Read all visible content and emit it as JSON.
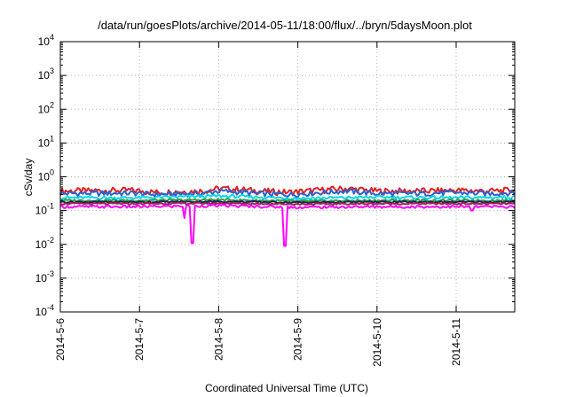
{
  "chart_data": {
    "type": "line",
    "title": "/data/run/goesPlots/archive/2014-05-11/18:00/flux/../bryn/5daysMoon.plot",
    "xlabel": "Coordinated Universal Time (UTC)",
    "ylabel": "cSv/day",
    "yscale": "log",
    "ylim": [
      0.0001,
      10000
    ],
    "xlim": [
      0,
      5.74
    ],
    "grid": true,
    "legend": "none",
    "y_ticks": [
      {
        "base": "10",
        "exp": "-4",
        "value": 0.0001
      },
      {
        "base": "10",
        "exp": "-3",
        "value": 0.001
      },
      {
        "base": "10",
        "exp": "-2",
        "value": 0.01
      },
      {
        "base": "10",
        "exp": "-1",
        "value": 0.1
      },
      {
        "base": "10",
        "exp": "0",
        "value": 1
      },
      {
        "base": "10",
        "exp": "1",
        "value": 10
      },
      {
        "base": "10",
        "exp": "2",
        "value": 100
      },
      {
        "base": "10",
        "exp": "3",
        "value": 1000
      },
      {
        "base": "10",
        "exp": "4",
        "value": 10000
      }
    ],
    "x_ticks": [
      {
        "label": "2014-5-6",
        "value": 0
      },
      {
        "label": "2014-5-7",
        "value": 1
      },
      {
        "label": "2014-5-8",
        "value": 2
      },
      {
        "label": "2014-5-9",
        "value": 3
      },
      {
        "label": "2014-5-10",
        "value": 4
      },
      {
        "label": "2014-5-11",
        "value": 5
      }
    ],
    "series": [
      {
        "color": "#e02020",
        "base": [
          [
            0,
            0.38
          ],
          [
            0.9,
            0.4
          ],
          [
            1.2,
            0.35
          ],
          [
            1.8,
            0.38
          ],
          [
            2.0,
            0.45
          ],
          [
            2.3,
            0.42
          ],
          [
            2.5,
            0.38
          ],
          [
            2.9,
            0.35
          ],
          [
            3.1,
            0.38
          ],
          [
            3.6,
            0.45
          ],
          [
            4.0,
            0.38
          ],
          [
            4.5,
            0.38
          ],
          [
            5.0,
            0.4
          ],
          [
            5.4,
            0.38
          ],
          [
            5.74,
            0.4
          ]
        ],
        "amp": 0.12,
        "dips": []
      },
      {
        "color": "#2f5fd0",
        "base": [
          [
            0,
            0.32
          ],
          [
            0.9,
            0.33
          ],
          [
            1.2,
            0.3
          ],
          [
            1.8,
            0.32
          ],
          [
            2.0,
            0.38
          ],
          [
            2.3,
            0.35
          ],
          [
            2.5,
            0.32
          ],
          [
            2.9,
            0.3
          ],
          [
            3.1,
            0.32
          ],
          [
            3.6,
            0.38
          ],
          [
            4.0,
            0.32
          ],
          [
            4.5,
            0.32
          ],
          [
            5.0,
            0.34
          ],
          [
            5.4,
            0.32
          ],
          [
            5.74,
            0.34
          ]
        ],
        "amp": 0.1,
        "dips": []
      },
      {
        "color": "#00d8e8",
        "base": [
          [
            0,
            0.24
          ],
          [
            1.0,
            0.24
          ],
          [
            2.0,
            0.27
          ],
          [
            3.0,
            0.23
          ],
          [
            4.0,
            0.25
          ],
          [
            5.0,
            0.24
          ],
          [
            5.74,
            0.25
          ]
        ],
        "amp": 0.06,
        "dips": []
      },
      {
        "color": "#30a040",
        "base": [
          [
            0,
            0.2
          ],
          [
            1.0,
            0.2
          ],
          [
            2.0,
            0.21
          ],
          [
            3.0,
            0.19
          ],
          [
            4.0,
            0.2
          ],
          [
            5.0,
            0.2
          ],
          [
            5.74,
            0.2
          ]
        ],
        "amp": 0.04,
        "dips": []
      },
      {
        "color": "#20205a",
        "base": [
          [
            0,
            0.18
          ],
          [
            1.0,
            0.18
          ],
          [
            2.0,
            0.185
          ],
          [
            3.0,
            0.175
          ],
          [
            4.0,
            0.18
          ],
          [
            5.0,
            0.18
          ],
          [
            5.74,
            0.18
          ]
        ],
        "amp": 0.03,
        "dips": []
      },
      {
        "color": "#a02050",
        "base": [
          [
            0,
            0.16
          ],
          [
            1.0,
            0.16
          ],
          [
            2.0,
            0.165
          ],
          [
            3.0,
            0.155
          ],
          [
            4.0,
            0.16
          ],
          [
            5.0,
            0.16
          ],
          [
            5.74,
            0.16
          ]
        ],
        "amp": 0.03,
        "dips": []
      },
      {
        "color": "#ff00ff",
        "base": [
          [
            0,
            0.13
          ],
          [
            1.0,
            0.13
          ],
          [
            2.0,
            0.14
          ],
          [
            3.0,
            0.125
          ],
          [
            4.0,
            0.13
          ],
          [
            5.0,
            0.13
          ],
          [
            5.74,
            0.13
          ]
        ],
        "amp": 0.05,
        "dips": [
          [
            1.57,
            0.06
          ],
          [
            1.67,
            0.011
          ],
          [
            2.84,
            0.009
          ],
          [
            5.2,
            0.1
          ]
        ]
      }
    ]
  }
}
